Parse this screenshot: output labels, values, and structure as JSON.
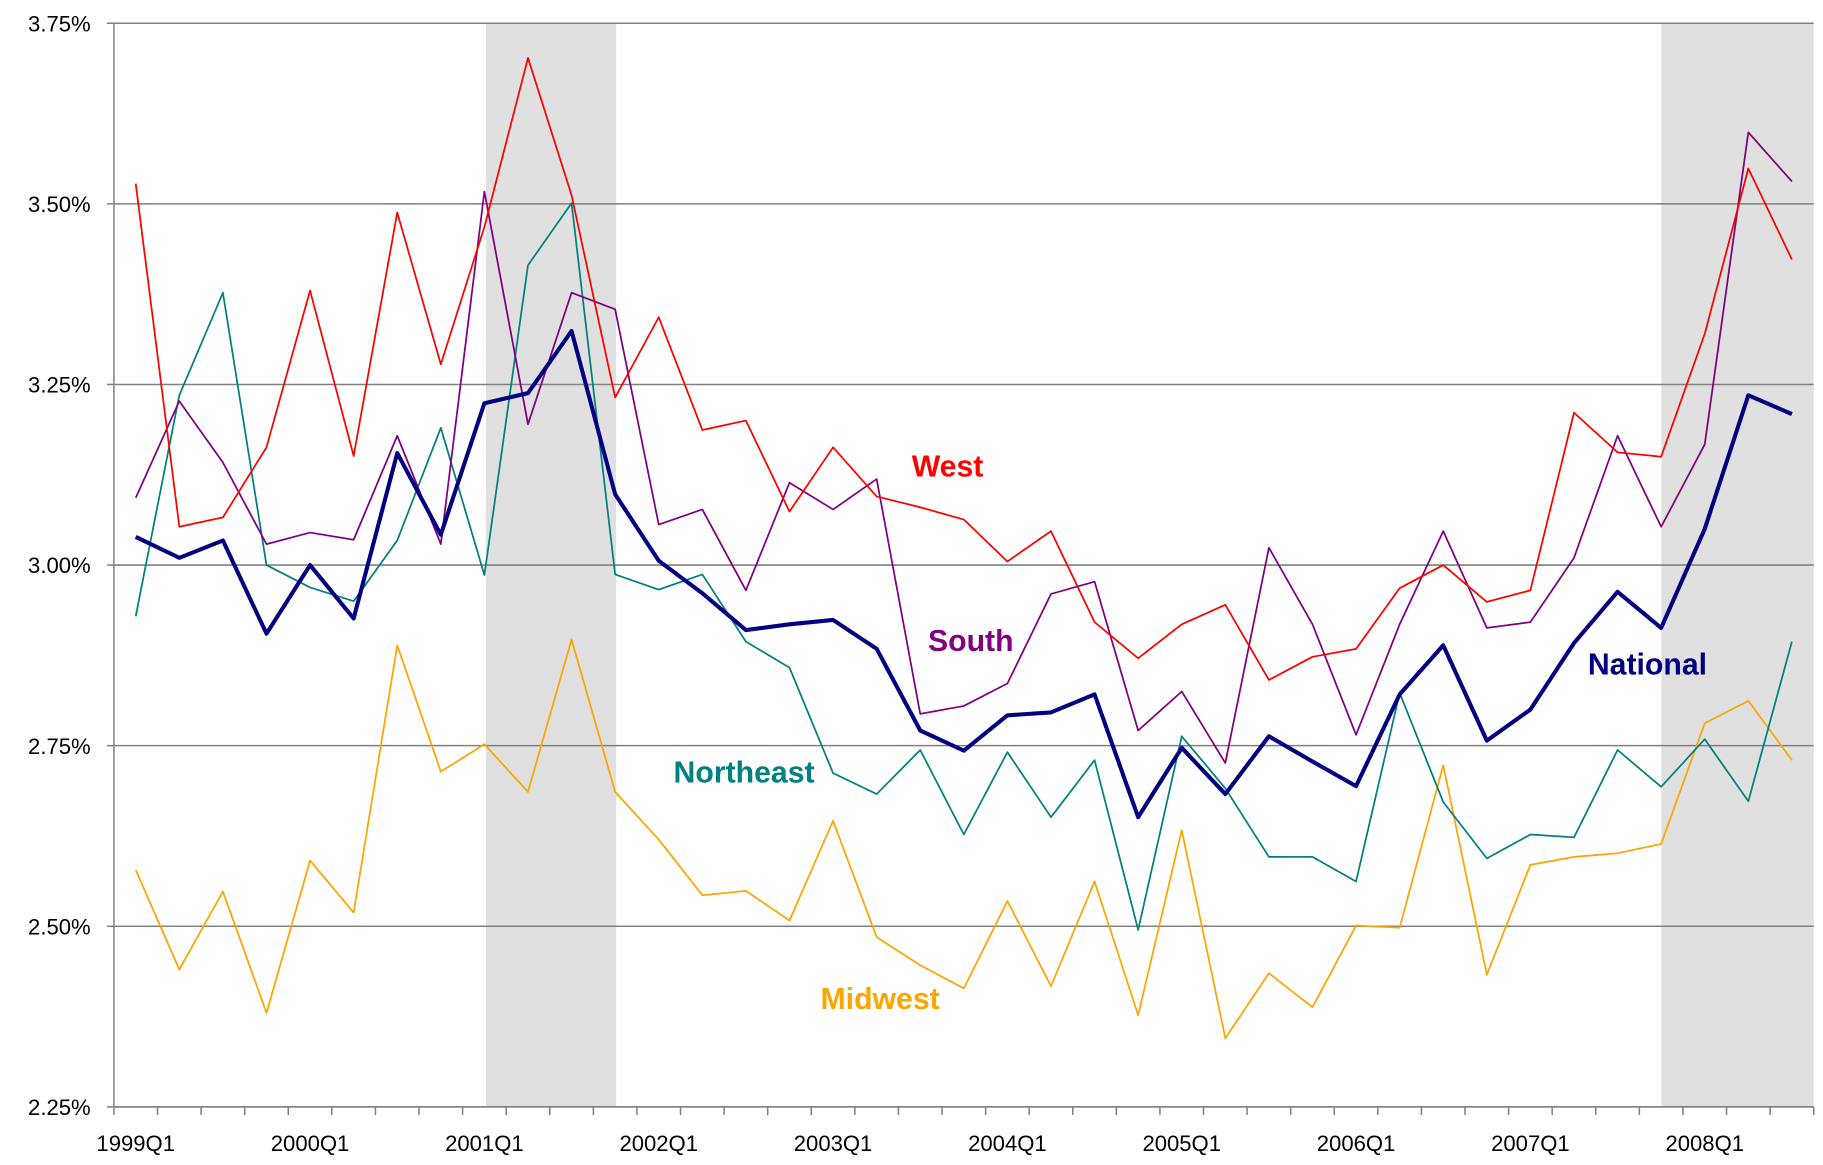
{
  "chart_data": {
    "type": "line",
    "categories": [
      "1999Q1",
      null,
      null,
      null,
      "2000Q1",
      null,
      null,
      null,
      "2001Q1",
      null,
      null,
      null,
      "2002Q1",
      null,
      null,
      null,
      "2003Q1",
      null,
      null,
      null,
      "2004Q1",
      null,
      null,
      null,
      "2005Q1",
      null,
      null,
      null,
      "2006Q1",
      null,
      null,
      null,
      "2007Q1",
      null,
      null,
      null,
      "2008Q1",
      null,
      null
    ],
    "ylim": [
      2.25,
      3.75
    ],
    "yticks": [
      {
        "value": 2.25,
        "label": "2.25%"
      },
      {
        "value": 2.5,
        "label": "2.50%"
      },
      {
        "value": 2.75,
        "label": "2.75%"
      },
      {
        "value": 3.0,
        "label": "3.00%"
      },
      {
        "value": 3.25,
        "label": "3.25%"
      },
      {
        "value": 3.5,
        "label": "3.50%"
      },
      {
        "value": 3.75,
        "label": "3.75%"
      }
    ],
    "grid": true,
    "series": [
      {
        "name": "National",
        "color": "#000080",
        "values": [
          3.039,
          3.01,
          3.034,
          2.905,
          3.0,
          2.926,
          3.155,
          3.042,
          3.224,
          3.238,
          3.324,
          3.098,
          3.006,
          2.961,
          2.91,
          2.918,
          2.924,
          2.884,
          2.771,
          2.743,
          2.792,
          2.796,
          2.821,
          2.651,
          2.747,
          2.683,
          2.763,
          2.728,
          2.694,
          2.821,
          2.889,
          2.757,
          2.8,
          2.892,
          2.963,
          2.913,
          3.05,
          3.235,
          3.209
        ]
      },
      {
        "name": "West",
        "color": "#ff0000",
        "values": [
          3.528,
          3.053,
          3.066,
          3.163,
          3.38,
          3.151,
          3.488,
          3.278,
          3.468,
          3.702,
          3.512,
          3.232,
          3.343,
          3.187,
          3.2,
          3.074,
          3.163,
          3.095,
          3.08,
          3.063,
          3.005,
          3.047,
          2.921,
          2.871,
          2.918,
          2.945,
          2.841,
          2.873,
          2.884,
          2.968,
          3.0,
          2.949,
          2.965,
          3.211,
          3.156,
          3.15,
          3.32,
          3.549,
          3.423
        ]
      },
      {
        "name": "South",
        "color": "#800080",
        "values": [
          3.093,
          3.227,
          3.142,
          3.029,
          3.045,
          3.035,
          3.179,
          3.029,
          3.517,
          3.195,
          3.377,
          3.354,
          3.056,
          3.077,
          2.965,
          3.114,
          3.077,
          3.119,
          2.794,
          2.805,
          2.836,
          2.96,
          2.977,
          2.771,
          2.825,
          2.726,
          3.024,
          2.918,
          2.765,
          2.918,
          3.047,
          2.913,
          2.921,
          3.01,
          3.179,
          3.053,
          3.167,
          3.599,
          3.531
        ]
      },
      {
        "name": "Northeast",
        "color": "#008080",
        "values": [
          2.929,
          3.235,
          3.377,
          3.0,
          2.969,
          2.95,
          3.034,
          3.19,
          2.986,
          3.415,
          3.501,
          2.987,
          2.966,
          2.987,
          2.894,
          2.858,
          2.712,
          2.683,
          2.744,
          2.627,
          2.741,
          2.651,
          2.73,
          2.495,
          2.763,
          2.691,
          2.596,
          2.596,
          2.562,
          2.823,
          2.672,
          2.594,
          2.627,
          2.623,
          2.744,
          2.693,
          2.759,
          2.673,
          2.894
        ]
      },
      {
        "name": "Midwest",
        "color": "#ffa500",
        "values": [
          2.578,
          2.44,
          2.548,
          2.38,
          2.591,
          2.519,
          2.889,
          2.714,
          2.752,
          2.686,
          2.897,
          2.686,
          2.62,
          2.543,
          2.549,
          2.508,
          2.646,
          2.485,
          2.446,
          2.414,
          2.535,
          2.417,
          2.562,
          2.377,
          2.633,
          2.345,
          2.435,
          2.388,
          2.501,
          2.498,
          2.723,
          2.433,
          2.585,
          2.596,
          2.601,
          2.614,
          2.781,
          2.812,
          2.73
        ]
      }
    ]
  }
}
